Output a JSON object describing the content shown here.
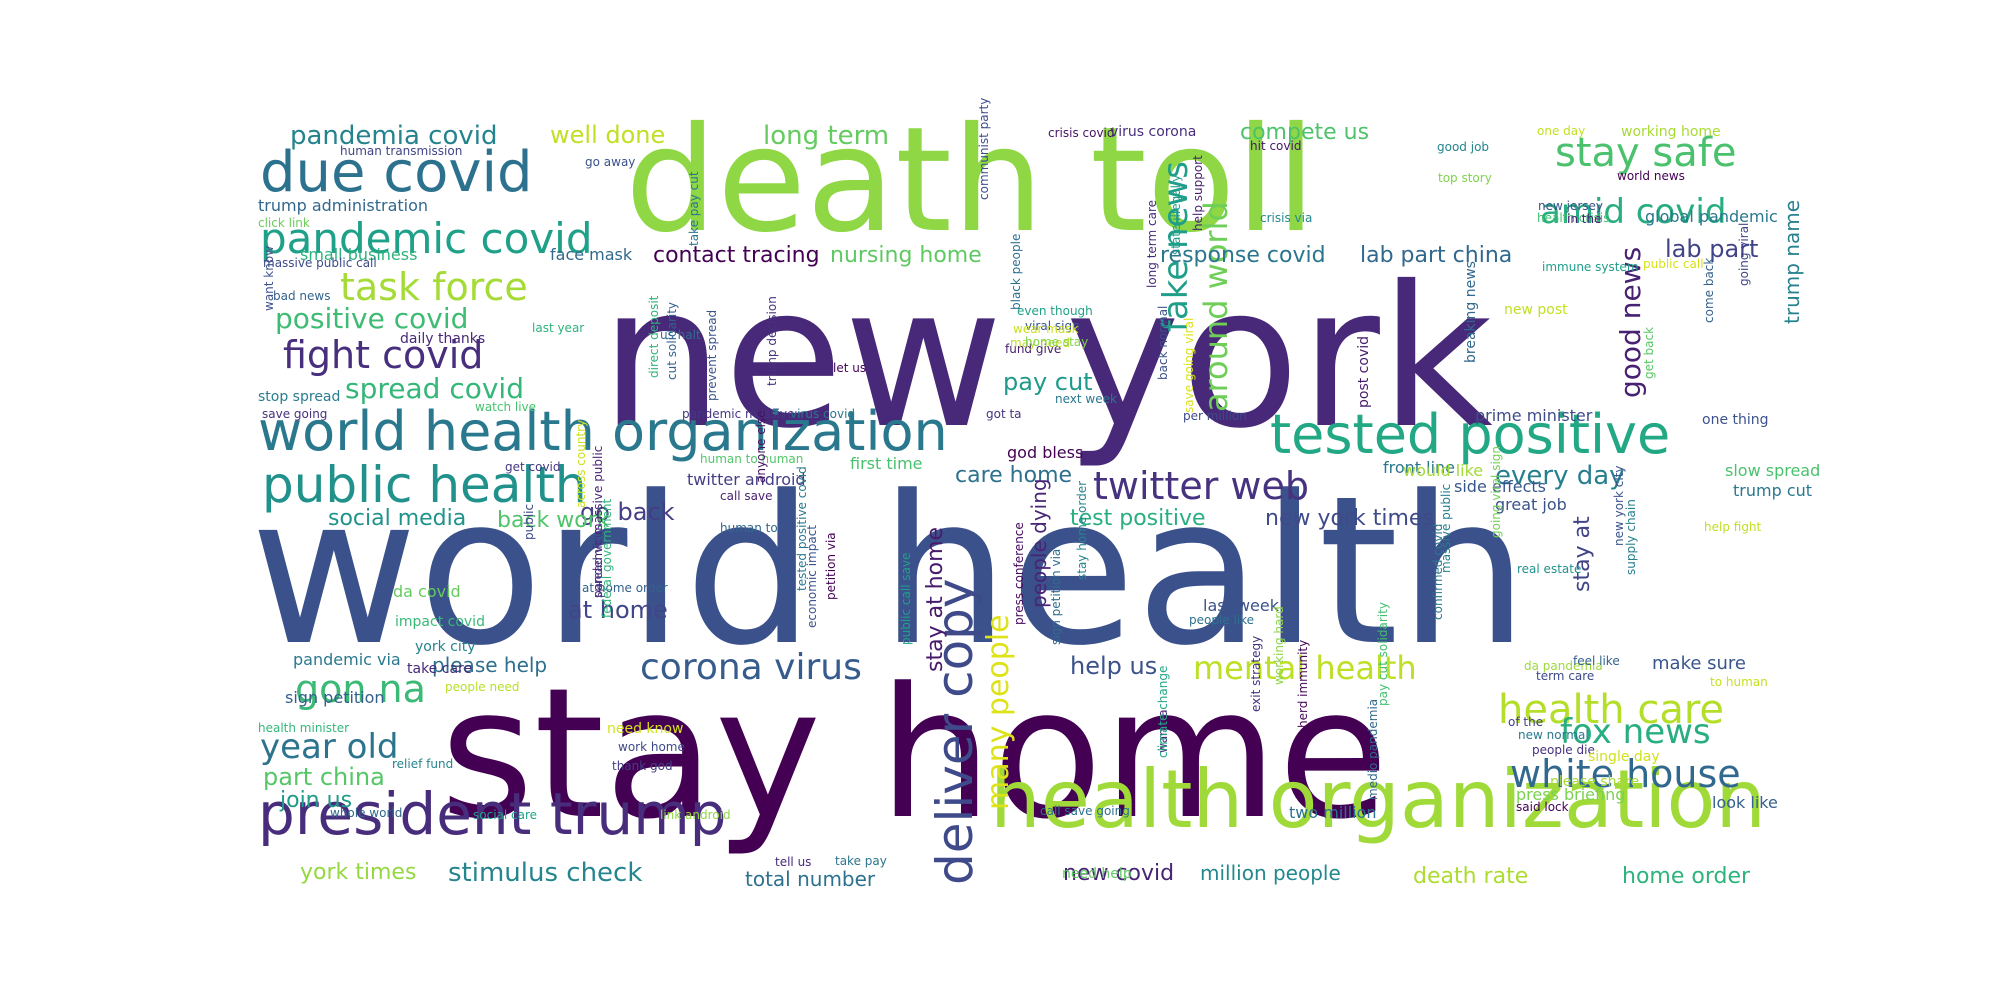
{
  "words": [
    {
      "text": "new york",
      "color": "#482878"
    },
    {
      "text": "world health",
      "color": "#3b518b"
    },
    {
      "text": "stay home",
      "color": "#440154"
    },
    {
      "text": "death toll",
      "color": "#8fd744"
    },
    {
      "text": "health organization",
      "color": "#a0da39"
    },
    {
      "text": "world health organization",
      "color": "#2a788e"
    },
    {
      "text": "tested positive",
      "color": "#22a884"
    },
    {
      "text": "president trump",
      "color": "#472d7b"
    },
    {
      "text": "due covid",
      "color": "#2c728e"
    },
    {
      "text": "public health",
      "color": "#21918c"
    },
    {
      "text": "pandemic covid",
      "color": "#1fa088"
    },
    {
      "text": "deliver copy",
      "color": "#3e4a89"
    },
    {
      "text": "twitter web",
      "color": "#46327e"
    },
    {
      "text": "corona virus",
      "color": "#365c8d"
    },
    {
      "text": "fight covid",
      "color": "#472f7d"
    },
    {
      "text": "task force",
      "color": "#a5db36"
    },
    {
      "text": "stay safe",
      "color": "#4ac16d"
    },
    {
      "text": "amid covid",
      "color": "#27ad81"
    },
    {
      "text": "health care",
      "color": "#b5de2b"
    },
    {
      "text": "white house",
      "color": "#31688e"
    },
    {
      "text": "mental health",
      "color": "#bddf26"
    },
    {
      "text": "fox news",
      "color": "#28ae80"
    },
    {
      "text": "many people",
      "color": "#dde318"
    },
    {
      "text": "fake news",
      "color": "#1f9e89"
    },
    {
      "text": "around world",
      "color": "#6ece58"
    },
    {
      "text": "good news",
      "color": "#482173"
    },
    {
      "text": "gon na",
      "color": "#3aba76"
    },
    {
      "text": "year old",
      "color": "#2c738e"
    },
    {
      "text": "positive covid",
      "color": "#3fbc73"
    },
    {
      "text": "every day",
      "color": "#277f8e"
    },
    {
      "text": "spread covid",
      "color": "#35b779"
    },
    {
      "text": "stimulus check",
      "color": "#25858e"
    },
    {
      "text": "pandemia covid",
      "color": "#25838e"
    },
    {
      "text": "long term",
      "color": "#63cb5f"
    },
    {
      "text": "well done",
      "color": "#c0df25"
    },
    {
      "text": "compete us",
      "color": "#4ec36b"
    },
    {
      "text": "lab part",
      "color": "#414487"
    },
    {
      "text": "lab part china",
      "color": "#31688e"
    },
    {
      "text": "contact tracing",
      "color": "#440154"
    },
    {
      "text": "nursing home",
      "color": "#5ec962"
    },
    {
      "text": "response covid",
      "color": "#2a768e"
    },
    {
      "text": "trump name",
      "color": "#26828e"
    },
    {
      "text": "pay cut",
      "color": "#1f9a8a"
    },
    {
      "text": "care home",
      "color": "#2d718e"
    },
    {
      "text": "at home",
      "color": "#404688"
    },
    {
      "text": "go back",
      "color": "#433e85"
    },
    {
      "text": "back work",
      "color": "#50c46a"
    },
    {
      "text": "social media",
      "color": "#20928c"
    },
    {
      "text": "test positive",
      "color": "#29af7f"
    },
    {
      "text": "new york times",
      "color": "#3e4a89"
    },
    {
      "text": "help us",
      "color": "#3b528b"
    },
    {
      "text": "please help",
      "color": "#2e6e8e"
    },
    {
      "text": "part china",
      "color": "#56c667"
    },
    {
      "text": "join us",
      "color": "#1e9b8a"
    },
    {
      "text": "york times",
      "color": "#95d840"
    },
    {
      "text": "new covid",
      "color": "#482475"
    },
    {
      "text": "million people",
      "color": "#23888e"
    },
    {
      "text": "death rate",
      "color": "#addc30"
    },
    {
      "text": "home order",
      "color": "#2eb37c"
    },
    {
      "text": "total number",
      "color": "#2d718e"
    },
    {
      "text": "press briefing",
      "color": "#7ad151"
    },
    {
      "text": "look like",
      "color": "#34618d"
    },
    {
      "text": "make sure",
      "color": "#39568c"
    },
    {
      "text": "stay at home",
      "color": "#481a6c"
    },
    {
      "text": "people dying",
      "color": "#482576"
    },
    {
      "text": "stay at",
      "color": "#414487"
    },
    {
      "text": "sign petition",
      "color": "#355f8d"
    },
    {
      "text": "pandemic via",
      "color": "#2a788e"
    },
    {
      "text": "small business",
      "color": "#2db27d"
    },
    {
      "text": "face mask",
      "color": "#31688e"
    },
    {
      "text": "da covid",
      "color": "#65cb5e"
    },
    {
      "text": "impact covid",
      "color": "#38b977"
    },
    {
      "text": "york city",
      "color": "#26828e"
    },
    {
      "text": "take care",
      "color": "#482979"
    },
    {
      "text": "first time",
      "color": "#48c16e"
    },
    {
      "text": "twitter android",
      "color": "#433e85"
    },
    {
      "text": "slow spread",
      "color": "#4ac16d"
    },
    {
      "text": "trump cut",
      "color": "#2a788e"
    },
    {
      "text": "great job",
      "color": "#3b528b"
    },
    {
      "text": "front line",
      "color": "#2a768e"
    },
    {
      "text": "would like",
      "color": "#a2da37"
    },
    {
      "text": "side effects",
      "color": "#39568c"
    },
    {
      "text": "prime minister",
      "color": "#3e4c8a"
    },
    {
      "text": "last week",
      "color": "#3b528b"
    },
    {
      "text": "two million",
      "color": "#2c728e"
    },
    {
      "text": "god bless",
      "color": "#440154"
    },
    {
      "text": "global pandemic",
      "color": "#2a778e"
    },
    {
      "text": "trump administration",
      "color": "#31688e"
    },
    {
      "text": "human transmission",
      "color": "#404588"
    },
    {
      "text": "stop spread",
      "color": "#287d8e"
    },
    {
      "text": "daily thanks",
      "color": "#482878"
    },
    {
      "text": "watch live",
      "color": "#46c06f"
    },
    {
      "text": "save going",
      "color": "#46327e"
    },
    {
      "text": "bad news",
      "color": "#33638d"
    },
    {
      "text": "want know",
      "color": "#3b528b"
    },
    {
      "text": "last year",
      "color": "#2db27d"
    },
    {
      "text": "click link",
      "color": "#6ccd5a"
    },
    {
      "text": "massive public call",
      "color": "#3e4a89"
    },
    {
      "text": "go away",
      "color": "#3b528b"
    },
    {
      "text": "human to human",
      "color": "#52c569"
    },
    {
      "text": "call save",
      "color": "#481f70"
    },
    {
      "text": "human to",
      "color": "#31688e"
    },
    {
      "text": "get covid",
      "color": "#453781"
    },
    {
      "text": "need know",
      "color": "#d2e21b"
    },
    {
      "text": "work home",
      "color": "#3e4989"
    },
    {
      "text": "thank god",
      "color": "#433e85"
    },
    {
      "text": "relief fund",
      "color": "#25848e"
    },
    {
      "text": "whole world",
      "color": "#31688e"
    },
    {
      "text": "social care",
      "color": "#20a486"
    },
    {
      "text": "link android",
      "color": "#90d743"
    },
    {
      "text": "take pay",
      "color": "#2b758e"
    },
    {
      "text": "tell us",
      "color": "#472a7a"
    },
    {
      "text": "health minister",
      "color": "#35b779"
    },
    {
      "text": "people need",
      "color": "#b8de29"
    },
    {
      "text": "need help",
      "color": "#5ec962"
    },
    {
      "text": "call save going",
      "color": "#2d708e"
    },
    {
      "text": "at home order",
      "color": "#34608d"
    },
    {
      "text": "per million",
      "color": "#3e4a89"
    },
    {
      "text": "next week",
      "color": "#2a788e"
    },
    {
      "text": "got ta",
      "color": "#46337e"
    },
    {
      "text": "let us",
      "color": "#440154"
    },
    {
      "text": "virus covid",
      "color": "#2a768e"
    },
    {
      "text": "pandemic massive",
      "color": "#453882"
    },
    {
      "text": "us halt",
      "color": "#2e6f8e"
    },
    {
      "text": "fund give",
      "color": "#482071"
    },
    {
      "text": "viral sign",
      "color": "#39568c"
    },
    {
      "text": "even though",
      "color": "#1fa187"
    },
    {
      "text": "may need",
      "color": "#bddf26"
    },
    {
      "text": "wear mask",
      "color": "#cae11f"
    },
    {
      "text": "home stay",
      "color": "#84d44b"
    },
    {
      "text": "crisis covid",
      "color": "#471365"
    },
    {
      "text": "virus corona",
      "color": "#472f7d"
    },
    {
      "text": "hit covid",
      "color": "#481668"
    },
    {
      "text": "good job",
      "color": "#25848e"
    },
    {
      "text": "top story",
      "color": "#7fd34e"
    },
    {
      "text": "new jersey",
      "color": "#3b528b"
    },
    {
      "text": "health crisis",
      "color": "#44bf70"
    },
    {
      "text": "one day",
      "color": "#c2df23"
    },
    {
      "text": "working home",
      "color": "#a8db34"
    },
    {
      "text": "world news",
      "color": "#440154"
    },
    {
      "text": "in the",
      "color": "#482173"
    },
    {
      "text": "crisis via",
      "color": "#23888e"
    },
    {
      "text": "immune system",
      "color": "#1f9e89"
    },
    {
      "text": "public call",
      "color": "#d8e219"
    },
    {
      "text": "new post",
      "color": "#c2df23"
    },
    {
      "text": "one thing",
      "color": "#3b528b"
    },
    {
      "text": "of the",
      "color": "#433e85"
    },
    {
      "text": "new normal",
      "color": "#2a788e"
    },
    {
      "text": "people die",
      "color": "#46307e"
    },
    {
      "text": "single day",
      "color": "#d0e11c"
    },
    {
      "text": "please share",
      "color": "#a5db36"
    },
    {
      "text": "said lock",
      "color": "#440154"
    },
    {
      "text": "da pandemia",
      "color": "#9dd93b"
    },
    {
      "text": "term care",
      "color": "#3e4989"
    },
    {
      "text": "feel like",
      "color": "#34618d"
    },
    {
      "text": "to human",
      "color": "#c8e020"
    },
    {
      "text": "help fight",
      "color": "#c0df25"
    },
    {
      "text": "real estate",
      "color": "#21918c"
    },
    {
      "text": "people like",
      "color": "#2c728e"
    },
    {
      "text": "going viral",
      "color": "#404688"
    },
    {
      "text": "come back",
      "color": "#34618d"
    },
    {
      "text": "get back",
      "color": "#58c765"
    },
    {
      "text": "breaking news",
      "color": "#31688e"
    },
    {
      "text": "post covid",
      "color": "#481c6e"
    },
    {
      "text": "save going viral",
      "color": "#d8e219"
    },
    {
      "text": "back normal",
      "color": "#3b528b"
    },
    {
      "text": "help support",
      "color": "#481f70"
    },
    {
      "text": "state illegally",
      "color": "#1f9e89"
    },
    {
      "text": "long term care",
      "color": "#472a7a"
    },
    {
      "text": "black people",
      "color": "#2e6f8e"
    },
    {
      "text": "communist party",
      "color": "#3d4d8a"
    },
    {
      "text": "take pay cut",
      "color": "#2a768e"
    },
    {
      "text": "direct deposit",
      "color": "#2eb37c"
    },
    {
      "text": "prevent spread",
      "color": "#3a538b"
    },
    {
      "text": "cut solidarity",
      "color": "#33638d"
    },
    {
      "text": "anyone else",
      "color": "#471063"
    },
    {
      "text": "trump decision",
      "color": "#46327e"
    },
    {
      "text": "massive public",
      "color": "#277f8e"
    },
    {
      "text": "going viral sign",
      "color": "#75d054"
    },
    {
      "text": "new york city",
      "color": "#3a548c"
    },
    {
      "text": "supply chain",
      "color": "#26818e"
    },
    {
      "text": "across country",
      "color": "#cde11d"
    },
    {
      "text": "public",
      "color": "#3e4a89"
    },
    {
      "text": "pandemic massive public",
      "color": "#482475"
    },
    {
      "text": "spread virus",
      "color": "#443a83"
    },
    {
      "text": "federal government",
      "color": "#2fb47c"
    },
    {
      "text": "tested positive covid",
      "color": "#2a788e"
    },
    {
      "text": "petition via",
      "color": "#440154"
    },
    {
      "text": "public call save",
      "color": "#1fa088"
    },
    {
      "text": "economic impact",
      "color": "#3b528b"
    },
    {
      "text": "sign petition via",
      "color": "#2e6e8e"
    },
    {
      "text": "press conference",
      "color": "#46085c"
    },
    {
      "text": "stay home order",
      "color": "#25848e"
    },
    {
      "text": "wan na",
      "color": "#482979"
    },
    {
      "text": "climate change",
      "color": "#22a884"
    },
    {
      "text": "exit strategy",
      "color": "#46307e"
    },
    {
      "text": "herd immunity",
      "color": "#450457"
    },
    {
      "text": "working hard",
      "color": "#8bd646"
    },
    {
      "text": "medio pandemia",
      "color": "#31688e"
    },
    {
      "text": "confirmed covid",
      "color": "#2a788e"
    },
    {
      "text": "pay cut solidarity",
      "color": "#44bf70"
    }
  ]
}
